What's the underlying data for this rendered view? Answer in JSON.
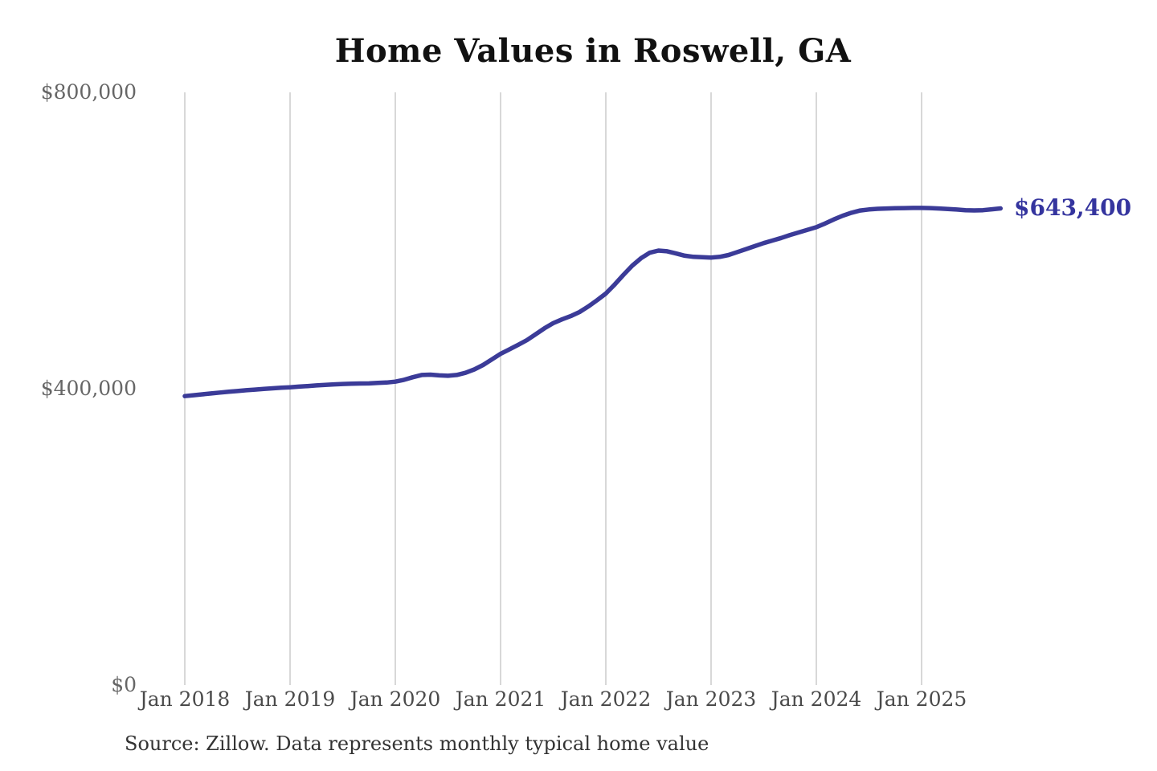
{
  "colors": {
    "line": "#3b3b98",
    "grid": "#cccccc",
    "axis_text": "#4a4a4a",
    "y_axis_text": "#666666",
    "title_text": "#111111",
    "label_text": "#34349e",
    "source_text": "#333333"
  },
  "chart_data": {
    "type": "line",
    "title": "Home Values in Roswell, GA",
    "source_note": "Source: Zillow. Data represents monthly typical home value",
    "latest_value_label": "$643,400",
    "xlabel": "",
    "ylabel": "",
    "ylim": [
      0,
      800000
    ],
    "grid": "vertical-only",
    "legend": "none",
    "x_tick_labels": [
      "Jan 2018",
      "Jan 2019",
      "Jan 2020",
      "Jan 2021",
      "Jan 2022",
      "Jan 2023",
      "Jan 2024",
      "Jan 2025"
    ],
    "y_ticks": [
      {
        "value": 0,
        "label": "$0"
      },
      {
        "value": 400000,
        "label": "$400,000"
      },
      {
        "value": 800000,
        "label": "$800,000"
      }
    ],
    "x": [
      "2018-01",
      "2018-02",
      "2018-03",
      "2018-04",
      "2018-05",
      "2018-06",
      "2018-07",
      "2018-08",
      "2018-09",
      "2018-10",
      "2018-11",
      "2018-12",
      "2019-01",
      "2019-02",
      "2019-03",
      "2019-04",
      "2019-05",
      "2019-06",
      "2019-07",
      "2019-08",
      "2019-09",
      "2019-10",
      "2019-11",
      "2019-12",
      "2020-01",
      "2020-02",
      "2020-03",
      "2020-04",
      "2020-05",
      "2020-06",
      "2020-07",
      "2020-08",
      "2020-09",
      "2020-10",
      "2020-11",
      "2020-12",
      "2021-01",
      "2021-02",
      "2021-03",
      "2021-04",
      "2021-05",
      "2021-06",
      "2021-07",
      "2021-08",
      "2021-09",
      "2021-10",
      "2021-11",
      "2021-12",
      "2022-01",
      "2022-02",
      "2022-03",
      "2022-04",
      "2022-05",
      "2022-06",
      "2022-07",
      "2022-08",
      "2022-09",
      "2022-10",
      "2022-11",
      "2022-12",
      "2023-01",
      "2023-02",
      "2023-03",
      "2023-04",
      "2023-05",
      "2023-06",
      "2023-07",
      "2023-08",
      "2023-09",
      "2023-10",
      "2023-11",
      "2023-12",
      "2024-01",
      "2024-02",
      "2024-03",
      "2024-04",
      "2024-05",
      "2024-06",
      "2024-07",
      "2024-08",
      "2024-09",
      "2024-10",
      "2024-11",
      "2024-12",
      "2025-01",
      "2025-02",
      "2025-03",
      "2025-04",
      "2025-05",
      "2025-06",
      "2025-07",
      "2025-08",
      "2025-09",
      "2025-10"
    ],
    "series": [
      {
        "name": "Monthly typical home value",
        "values": [
          390000,
          391200,
          392400,
          393600,
          394800,
          395900,
          396900,
          397900,
          398800,
          399700,
          400500,
          401300,
          402000,
          402800,
          403600,
          404400,
          405100,
          405800,
          406400,
          406800,
          407000,
          407200,
          407800,
          408400,
          409500,
          412000,
          415500,
          418500,
          419000,
          418000,
          417500,
          418500,
          421500,
          426000,
          432000,
          439500,
          447000,
          453000,
          459200,
          465600,
          473500,
          481500,
          488500,
          493500,
          498000,
          503500,
          511000,
          519500,
          528500,
          540500,
          553500,
          566000,
          576000,
          583500,
          586500,
          585500,
          582500,
          579500,
          578000,
          577500,
          577000,
          578000,
          580500,
          584500,
          588500,
          592500,
          596500,
          600000,
          603500,
          607500,
          611000,
          614500,
          618000,
          623000,
          628500,
          633500,
          637500,
          640500,
          642000,
          642800,
          643200,
          643600,
          643800,
          644000,
          644000,
          643800,
          643200,
          642500,
          641800,
          641000,
          640600,
          641000,
          642200,
          643400
        ]
      }
    ]
  }
}
